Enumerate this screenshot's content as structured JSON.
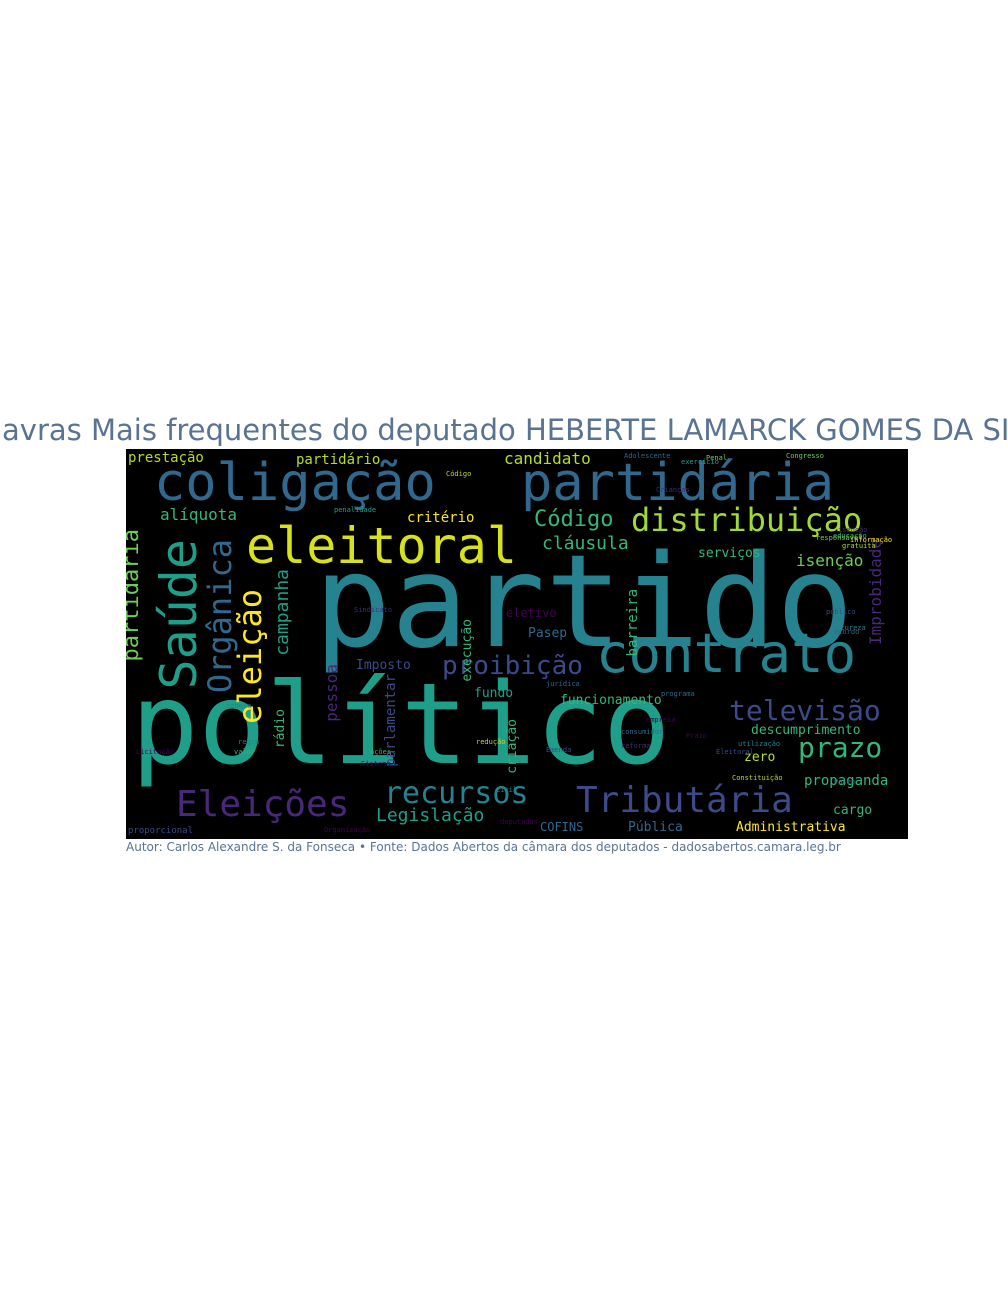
{
  "title": "Palavras Mais frequentes do deputado HEBERTE LAMARCK GOMES DA SILVA",
  "caption": "Autor: Carlos Alexandre S. da Fonseca • Fonte: Dados Abertos da câmara dos deputados - dadosabertos.camara.leg.br",
  "palette": [
    "#440154",
    "#482878",
    "#3e4989",
    "#31688e",
    "#26828e",
    "#1f9e89",
    "#35b779",
    "#6ece58",
    "#b5de2b",
    "#fde725"
  ],
  "words": [
    {
      "text": "partido",
      "size": "xxl",
      "color": "#26828e"
    },
    {
      "text": "político",
      "size": "xxl",
      "color": "#1f9e89"
    },
    {
      "text": "coligação",
      "size": "xl",
      "color": "#31688e"
    },
    {
      "text": "partidária",
      "size": "xl",
      "color": "#31688e"
    },
    {
      "text": "contrato",
      "size": "xl",
      "color": "#26828e"
    },
    {
      "text": "eleitoral",
      "size": "l",
      "color": "#d8e219"
    },
    {
      "text": "Saúde",
      "size": "l",
      "color": "#1f9e89",
      "rotate": true
    },
    {
      "text": "Eleições",
      "size": "l",
      "color": "#482878"
    },
    {
      "text": "Tributária",
      "size": "l",
      "color": "#3e4989"
    },
    {
      "text": "distribuição",
      "size": "m",
      "color": "#a0da39"
    },
    {
      "text": "recursos",
      "size": "m",
      "color": "#26828e"
    },
    {
      "text": "eleição",
      "size": "m",
      "color": "#fde725",
      "rotate": true
    },
    {
      "text": "Orgânica",
      "size": "m",
      "color": "#31688e",
      "rotate": true
    },
    {
      "text": "televisão",
      "size": "m",
      "color": "#3e4989"
    },
    {
      "text": "prazo",
      "size": "m",
      "color": "#35b779"
    },
    {
      "text": "proibição",
      "size": "m",
      "color": "#3e4989"
    },
    {
      "text": "Código",
      "size": "m",
      "color": "#35b779"
    },
    {
      "text": "partidária",
      "size": "m",
      "color": "#6ece58",
      "rotate": true
    },
    {
      "text": "Legislação",
      "size": "s",
      "color": "#1f9e89"
    },
    {
      "text": "cláusula",
      "size": "s",
      "color": "#35b779"
    },
    {
      "text": "campanha",
      "size": "s",
      "color": "#1f9e89",
      "rotate": true
    },
    {
      "text": "Improbidade",
      "size": "s",
      "color": "#482878",
      "rotate": true
    },
    {
      "text": "pessoa",
      "size": "s",
      "color": "#482878",
      "rotate": true
    },
    {
      "text": "parlamentar",
      "size": "s",
      "color": "#3e4989",
      "rotate": true
    },
    {
      "text": "alíquota",
      "size": "xs",
      "color": "#35b779"
    },
    {
      "text": "candidato",
      "size": "xs",
      "color": "#b5de2b"
    },
    {
      "text": "prestação",
      "size": "xs",
      "color": "#b5de2b"
    },
    {
      "text": "partidário",
      "size": "xs",
      "color": "#b5de2b"
    },
    {
      "text": "critério",
      "size": "xs",
      "color": "#fde725"
    },
    {
      "text": "serviços",
      "size": "xs",
      "color": "#35b779"
    },
    {
      "text": "isenção",
      "size": "xs",
      "color": "#6ece58"
    },
    {
      "text": "Imposto",
      "size": "xs",
      "color": "#3e4989"
    },
    {
      "text": "Pasep",
      "size": "xs",
      "color": "#31688e"
    },
    {
      "text": "fundo",
      "size": "xs",
      "color": "#1f9e89"
    },
    {
      "text": "funcionamento",
      "size": "xs",
      "color": "#35b779"
    },
    {
      "text": "descumprimento",
      "size": "xs",
      "color": "#35b779"
    },
    {
      "text": "propaganda",
      "size": "xs",
      "color": "#35b779"
    },
    {
      "text": "zero",
      "size": "xs",
      "color": "#b5de2b"
    },
    {
      "text": "cargo",
      "size": "xs",
      "color": "#35b779"
    },
    {
      "text": "Administrativa",
      "size": "xs",
      "color": "#fde725"
    },
    {
      "text": "Pública",
      "size": "xs",
      "color": "#31688e"
    },
    {
      "text": "COFINS",
      "size": "xs",
      "color": "#31688e"
    },
    {
      "text": "barreira",
      "size": "xs",
      "color": "#35b779",
      "rotate": true
    },
    {
      "text": "eletivo",
      "size": "xs",
      "color": "#440154"
    },
    {
      "text": "execução",
      "size": "xs",
      "color": "#35b779",
      "rotate": true
    },
    {
      "text": "criação",
      "size": "xs",
      "color": "#35b779",
      "rotate": true
    },
    {
      "text": "rádio",
      "size": "xs",
      "color": "#35b779",
      "rotate": true
    },
    {
      "text": "proporcional",
      "size": "xxs",
      "color": "#3e4989"
    },
    {
      "text": "Organização",
      "size": "xxs",
      "color": "#440154"
    },
    {
      "text": "Penal",
      "size": "xxs",
      "color": "#6ece58"
    },
    {
      "text": "Congresso",
      "size": "xxs",
      "color": "#6ece58"
    },
    {
      "text": "Adolescente",
      "size": "xxs",
      "color": "#31688e"
    },
    {
      "text": "Crianças",
      "size": "xxs",
      "color": "#482878"
    },
    {
      "text": "Sistema",
      "size": "xxs",
      "color": "#440154"
    },
    {
      "text": "Constituição",
      "size": "xxs",
      "color": "#b5de2b"
    },
    {
      "text": "Prazo",
      "size": "xxs",
      "color": "#440154"
    },
    {
      "text": "Pasep",
      "size": "xxs",
      "color": "#31688e"
    },
    {
      "text": "exercício",
      "size": "xxs",
      "color": "#1f9e89"
    },
    {
      "text": "Código",
      "size": "xxs",
      "color": "#b5de2b"
    },
    {
      "text": "Civil",
      "size": "xxs",
      "color": "#26828e"
    },
    {
      "text": "Licitação",
      "size": "xxs",
      "color": "#440154"
    },
    {
      "text": "regra",
      "size": "xxs",
      "color": "#26828e"
    },
    {
      "text": "valor",
      "size": "xxs",
      "color": "#35b779"
    },
    {
      "text": "tabela",
      "size": "xxs",
      "color": "#26828e"
    },
    {
      "text": "reforma",
      "size": "xxs",
      "color": "#482878"
    },
    {
      "text": "Emenda",
      "size": "xxs",
      "color": "#3e4989"
    },
    {
      "text": "consumidor",
      "size": "xxs",
      "color": "#31688e"
    },
    {
      "text": "ações",
      "size": "xxs",
      "color": "#35b779"
    },
    {
      "text": "redução",
      "size": "xxs",
      "color": "#b5de2b"
    },
    {
      "text": "deputados",
      "size": "xxs",
      "color": "#440154"
    },
    {
      "text": "Eleitoral",
      "size": "xxs",
      "color": "#3e4989"
    },
    {
      "text": "penalidade",
      "size": "xxs",
      "color": "#1f9e89"
    },
    {
      "text": "jurídica",
      "size": "xxs",
      "color": "#31688e"
    },
    {
      "text": "natureza",
      "size": "xxs",
      "color": "#26828e"
    },
    {
      "text": "educação",
      "size": "xxs",
      "color": "#35b779"
    },
    {
      "text": "gratuita",
      "size": "xxs",
      "color": "#b5de2b"
    },
    {
      "text": "informação",
      "size": "xxs",
      "color": "#fde725"
    },
    {
      "text": "isenção",
      "size": "xxs",
      "color": "#482878"
    },
    {
      "text": "público",
      "size": "xxs",
      "color": "#3e4989"
    },
    {
      "text": "acordo",
      "size": "xxs",
      "color": "#31688e"
    },
    {
      "text": "empresa",
      "size": "xxs",
      "color": "#440154"
    },
    {
      "text": "Sindicato",
      "size": "xxs",
      "color": "#482878"
    },
    {
      "text": "responsável",
      "size": "xxs",
      "color": "#6ece58"
    },
    {
      "text": "utilização",
      "size": "xxs",
      "color": "#26828e"
    },
    {
      "text": "programa",
      "size": "xxs",
      "color": "#31688e"
    }
  ]
}
